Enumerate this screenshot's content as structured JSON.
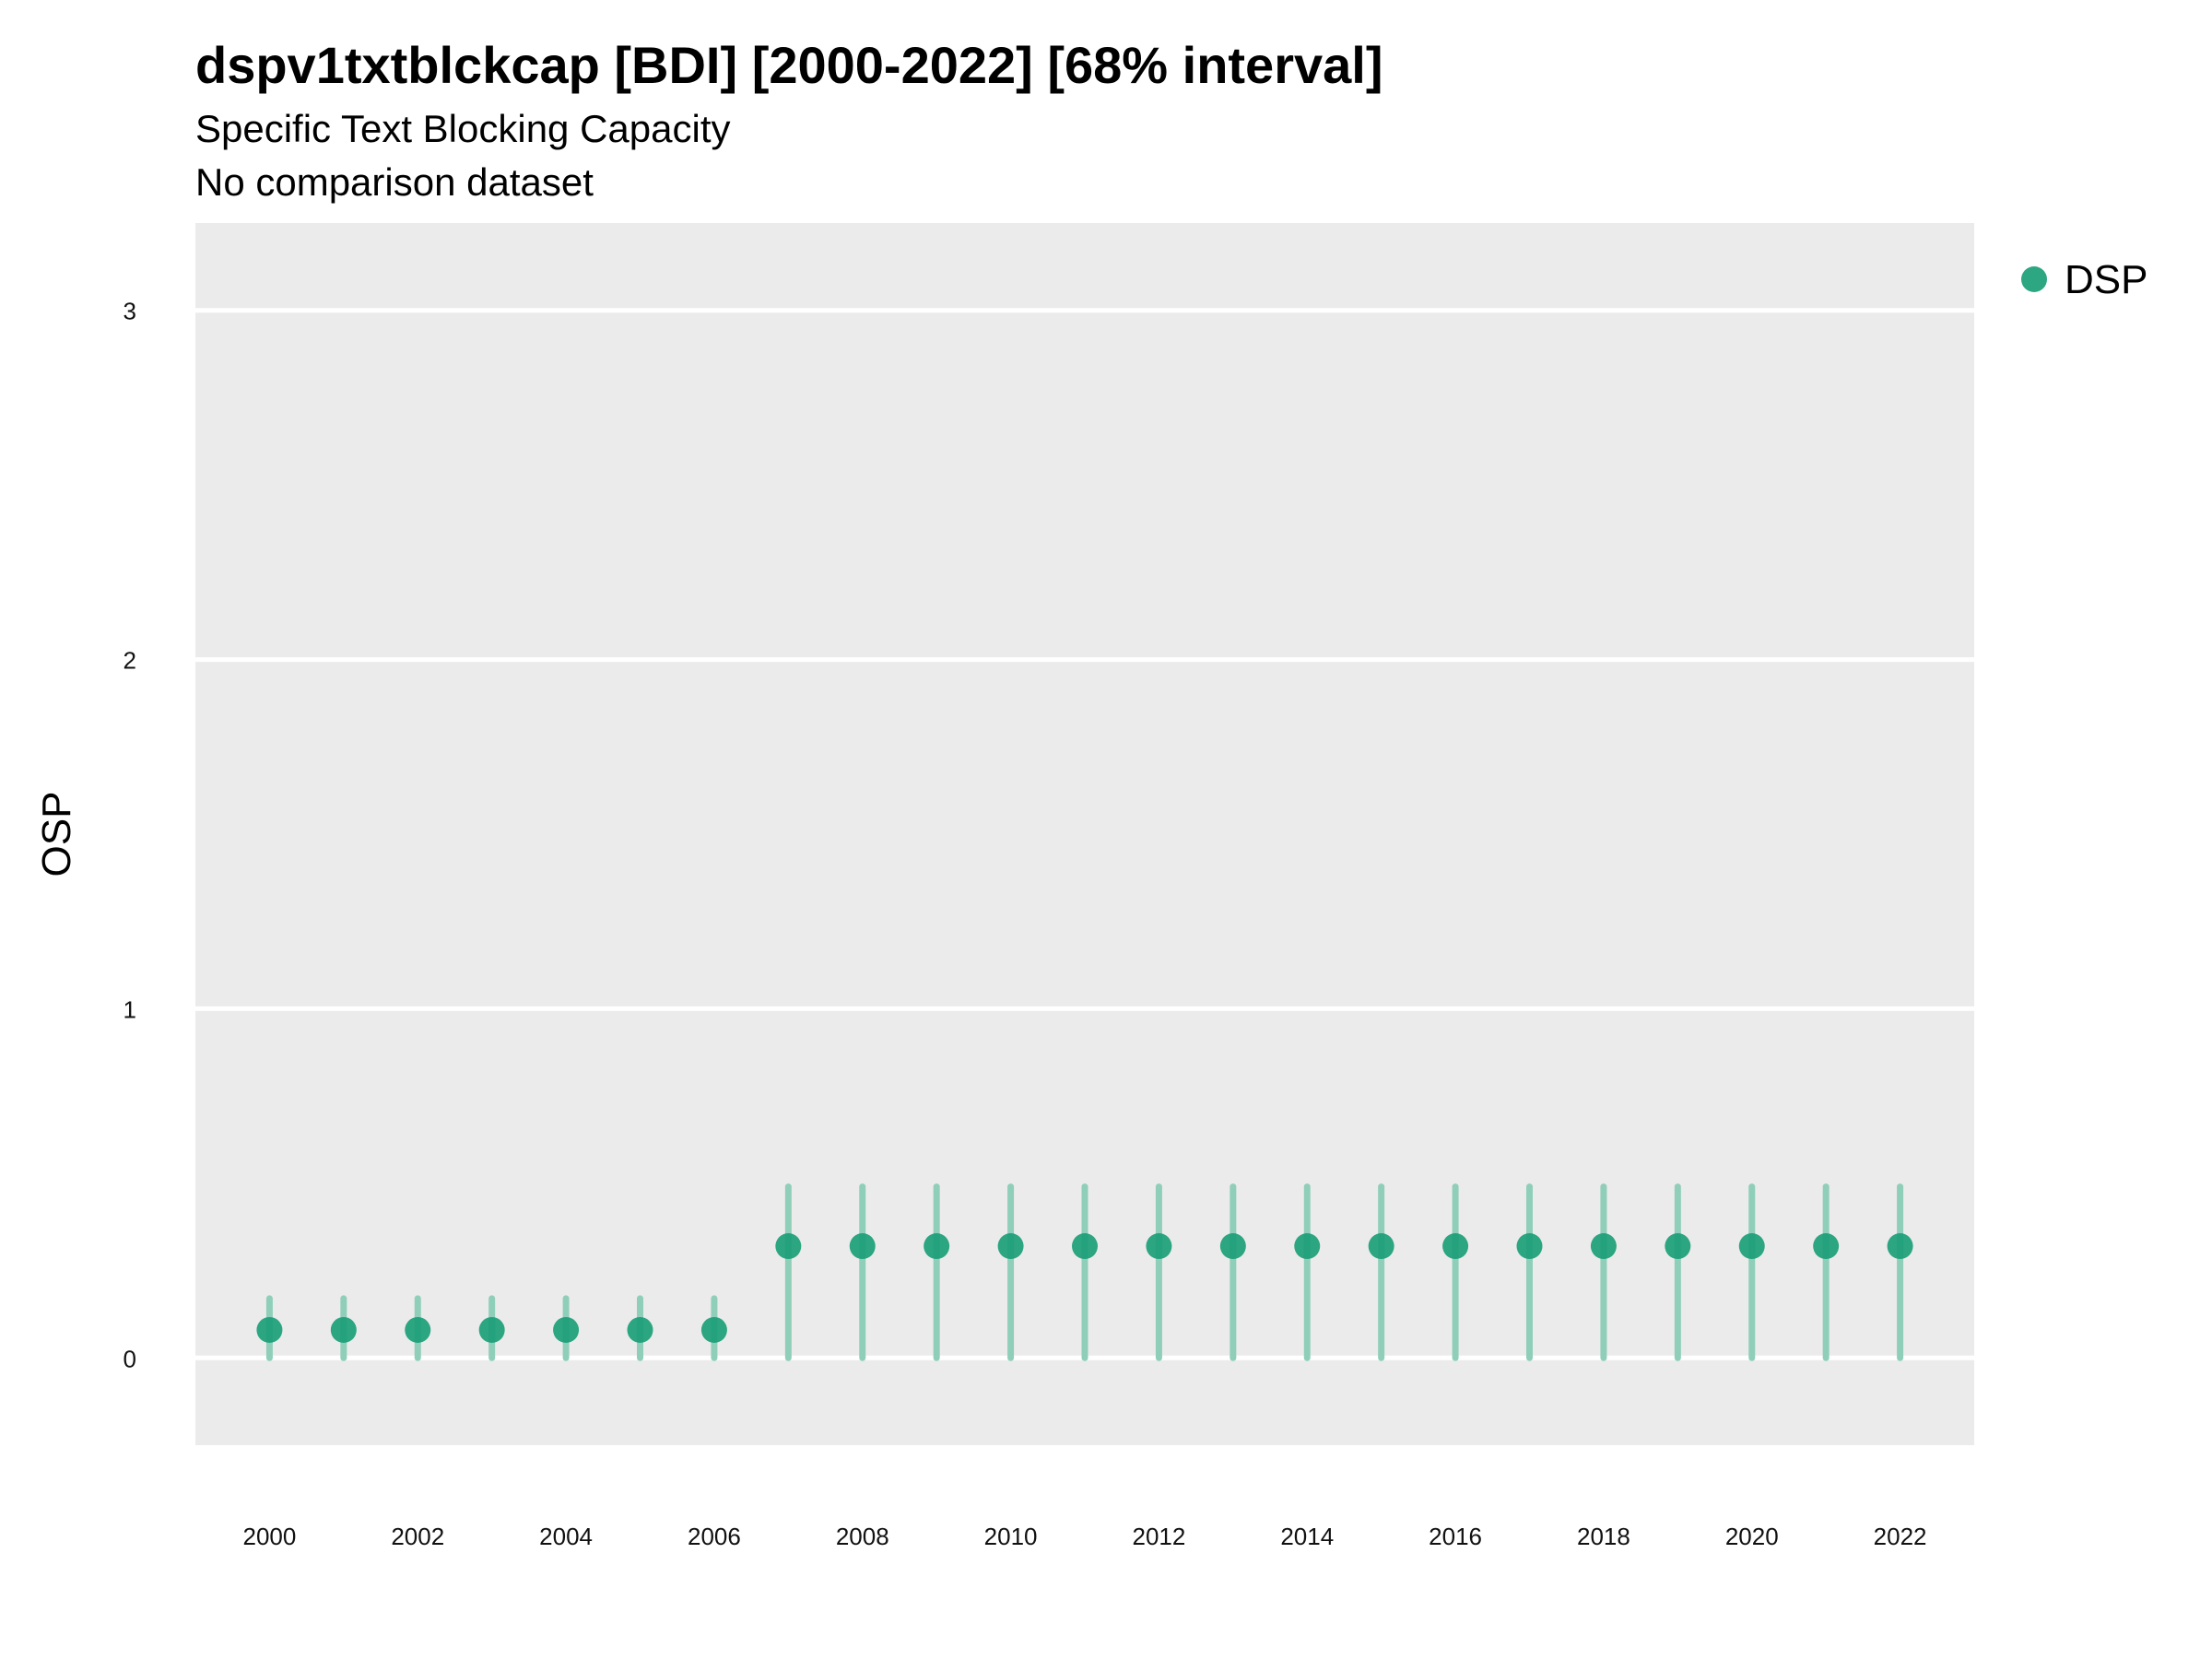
{
  "chart_data": {
    "type": "scatter",
    "title": "dspv1txtblckcap [BDI] [2000-2022] [68% interval]",
    "subtitle": "Specific Text Blocking Capacity",
    "caption": "No comparison dataset",
    "xlabel": "",
    "ylabel": "OSP",
    "xlim": [
      1999,
      2023
    ],
    "ylim": [
      -0.25,
      3.25
    ],
    "x_ticks": [
      2000,
      2002,
      2004,
      2006,
      2008,
      2010,
      2012,
      2014,
      2016,
      2018,
      2020,
      2022
    ],
    "y_ticks": [
      0,
      1,
      2,
      3
    ],
    "grid": true,
    "legend_position": "top-right",
    "colors": {
      "series": "#1b9e77",
      "interval": "#8fcfb9",
      "panel": "#ebebeb",
      "grid": "#ffffff"
    },
    "series": [
      {
        "name": "DSP",
        "x": [
          2000,
          2001,
          2002,
          2003,
          2004,
          2005,
          2006,
          2007,
          2008,
          2009,
          2010,
          2011,
          2012,
          2013,
          2014,
          2015,
          2016,
          2017,
          2018,
          2019,
          2020,
          2021,
          2022
        ],
        "y": [
          0.08,
          0.08,
          0.08,
          0.08,
          0.08,
          0.08,
          0.08,
          0.32,
          0.32,
          0.32,
          0.32,
          0.32,
          0.32,
          0.32,
          0.32,
          0.32,
          0.32,
          0.32,
          0.32,
          0.32,
          0.32,
          0.32,
          0.32
        ],
        "lower": [
          0,
          0,
          0,
          0,
          0,
          0,
          0,
          0,
          0,
          0,
          0,
          0,
          0,
          0,
          0,
          0,
          0,
          0,
          0,
          0,
          0,
          0,
          0
        ],
        "upper": [
          0.17,
          0.17,
          0.17,
          0.17,
          0.17,
          0.17,
          0.17,
          0.49,
          0.49,
          0.49,
          0.49,
          0.49,
          0.49,
          0.49,
          0.49,
          0.49,
          0.49,
          0.49,
          0.49,
          0.49,
          0.49,
          0.49,
          0.49
        ]
      }
    ]
  }
}
